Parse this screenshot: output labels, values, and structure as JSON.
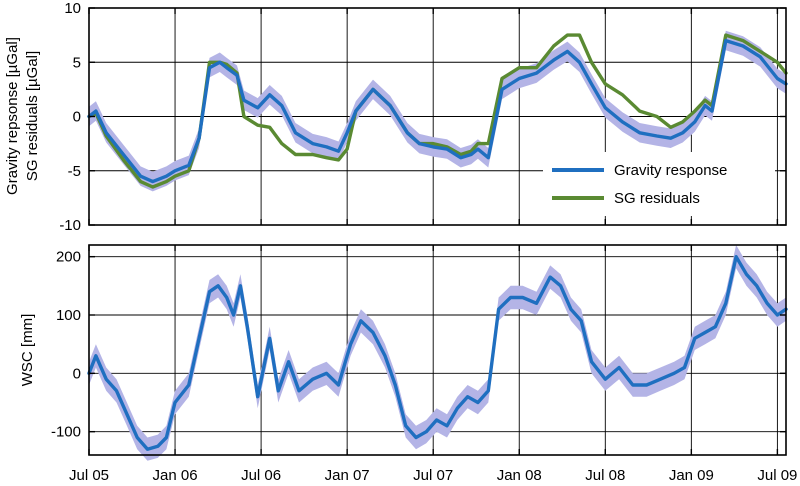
{
  "chart_data": [
    {
      "type": "line",
      "panel": "top",
      "ylabel_lines": [
        "Gravity repsonse [µGal]",
        "SG residuals [µGal]"
      ],
      "ylim": [
        -10,
        10
      ],
      "yticks": [
        10,
        5,
        0,
        -5,
        -10
      ],
      "xlim": [
        2005.5,
        2009.55
      ],
      "xticks": [
        2005.5,
        2006.0,
        2006.5,
        2007.0,
        2007.5,
        2008.0,
        2008.5,
        2009.0,
        2009.5
      ],
      "grid": true,
      "legend_placement": "lower-right",
      "colors": {
        "gravity": "#1f6fc0",
        "sg": "#5a8a32",
        "band": "#b4b4e6"
      },
      "band_halfwidth": 0.9,
      "series": [
        {
          "name": "Gravity response",
          "key": "gravity",
          "x": [
            2005.5,
            2005.54,
            2005.6,
            2005.7,
            2005.8,
            2005.87,
            2005.95,
            2006.0,
            2006.08,
            2006.14,
            2006.2,
            2006.26,
            2006.3,
            2006.36,
            2006.4,
            2006.48,
            2006.55,
            2006.62,
            2006.7,
            2006.8,
            2006.88,
            2006.95,
            2007.0,
            2007.05,
            2007.15,
            2007.25,
            2007.35,
            2007.42,
            2007.5,
            2007.58,
            2007.66,
            2007.72,
            2007.76,
            2007.82,
            2007.9,
            2008.0,
            2008.1,
            2008.2,
            2008.28,
            2008.35,
            2008.42,
            2008.5,
            2008.6,
            2008.7,
            2008.8,
            2008.88,
            2008.95,
            2009.02,
            2009.08,
            2009.12,
            2009.2,
            2009.3,
            2009.4,
            2009.5,
            2009.55
          ],
          "y": [
            0,
            0.5,
            -1.5,
            -3.5,
            -5.5,
            -6.0,
            -5.5,
            -5.0,
            -4.5,
            -2.0,
            4.5,
            5.0,
            4.5,
            3.8,
            1.5,
            0.8,
            2.0,
            1.0,
            -1.5,
            -2.5,
            -2.8,
            -3.2,
            -1.5,
            0.5,
            2.5,
            1.0,
            -1.5,
            -2.5,
            -2.8,
            -3.0,
            -3.8,
            -3.5,
            -3.0,
            -3.8,
            2.5,
            3.5,
            4.0,
            5.2,
            6.0,
            5.0,
            3.0,
            0.8,
            -0.5,
            -1.5,
            -1.8,
            -2.0,
            -1.5,
            -0.5,
            1.0,
            0.5,
            7.0,
            6.5,
            5.5,
            3.5,
            3.0
          ]
        },
        {
          "name": "SG residuals",
          "key": "sg",
          "x": [
            2005.5,
            2005.54,
            2005.6,
            2005.7,
            2005.8,
            2005.87,
            2005.95,
            2006.0,
            2006.08,
            2006.14,
            2006.2,
            2006.26,
            2006.3,
            2006.36,
            2006.4,
            2006.48,
            2006.55,
            2006.62,
            2006.7,
            2006.8,
            2006.88,
            2006.95,
            2007.0,
            2007.05,
            2007.15,
            2007.25,
            2007.35,
            2007.42,
            2007.5,
            2007.58,
            2007.66,
            2007.72,
            2007.76,
            2007.82,
            2007.9,
            2008.0,
            2008.1,
            2008.2,
            2008.28,
            2008.35,
            2008.42,
            2008.5,
            2008.6,
            2008.7,
            2008.8,
            2008.88,
            2008.95,
            2009.02,
            2009.08,
            2009.12,
            2009.2,
            2009.3,
            2009.4,
            2009.5,
            2009.55
          ],
          "y": [
            0,
            0.3,
            -1.8,
            -4.0,
            -6.0,
            -6.5,
            -6.0,
            -5.5,
            -5.0,
            -2.0,
            5.0,
            5.0,
            4.8,
            4.0,
            0.0,
            -0.8,
            -1.0,
            -2.5,
            -3.5,
            -3.5,
            -3.8,
            -4.0,
            -3.0,
            0.5,
            2.5,
            1.0,
            -1.5,
            -2.5,
            -2.5,
            -2.8,
            -3.5,
            -3.2,
            -2.5,
            -2.5,
            3.5,
            4.5,
            4.5,
            6.5,
            7.5,
            7.5,
            5.0,
            3.0,
            2.0,
            0.5,
            0.0,
            -1.0,
            -0.5,
            0.5,
            1.5,
            1.0,
            7.5,
            7.0,
            6.0,
            5.0,
            4.0
          ]
        }
      ]
    },
    {
      "type": "line",
      "panel": "bottom",
      "ylabel": "WSC [mm]",
      "ylim": [
        -140,
        220
      ],
      "yticks": [
        200,
        100,
        0,
        -100
      ],
      "xlim": [
        2005.5,
        2009.55
      ],
      "xticks": [
        2005.5,
        2006.0,
        2006.5,
        2007.0,
        2007.5,
        2008.0,
        2008.5,
        2009.0,
        2009.5
      ],
      "xtick_labels": [
        "Jul 05",
        "Jan 06",
        "Jul 06",
        "Jan 07",
        "Jul 07",
        "Jan 08",
        "Jul 08",
        "Jan 09",
        "Jul 09"
      ],
      "grid": true,
      "colors": {
        "wsc": "#1f6fc0",
        "band": "#b4b4e6"
      },
      "band_halfwidth": 20,
      "series": [
        {
          "key": "wsc",
          "x": [
            2005.5,
            2005.54,
            2005.6,
            2005.66,
            2005.72,
            2005.78,
            2005.84,
            2005.9,
            2005.95,
            2006.0,
            2006.08,
            2006.14,
            2006.2,
            2006.25,
            2006.3,
            2006.34,
            2006.38,
            2006.42,
            2006.48,
            2006.55,
            2006.6,
            2006.66,
            2006.72,
            2006.8,
            2006.88,
            2006.95,
            2007.02,
            2007.08,
            2007.15,
            2007.22,
            2007.28,
            2007.34,
            2007.4,
            2007.46,
            2007.52,
            2007.58,
            2007.64,
            2007.7,
            2007.76,
            2007.82,
            2007.88,
            2007.95,
            2008.02,
            2008.1,
            2008.18,
            2008.24,
            2008.3,
            2008.36,
            2008.42,
            2008.5,
            2008.58,
            2008.66,
            2008.74,
            2008.82,
            2008.9,
            2008.96,
            2009.02,
            2009.08,
            2009.14,
            2009.2,
            2009.26,
            2009.32,
            2009.38,
            2009.44,
            2009.5,
            2009.55
          ],
          "y": [
            0,
            30,
            -10,
            -30,
            -70,
            -110,
            -130,
            -125,
            -110,
            -50,
            -20,
            60,
            140,
            150,
            130,
            100,
            150,
            80,
            -40,
            60,
            -30,
            20,
            -30,
            -10,
            0,
            -20,
            50,
            90,
            70,
            30,
            -20,
            -90,
            -110,
            -100,
            -80,
            -90,
            -60,
            -40,
            -50,
            -30,
            110,
            130,
            130,
            120,
            165,
            150,
            110,
            90,
            20,
            -10,
            10,
            -20,
            -20,
            -10,
            0,
            10,
            60,
            70,
            80,
            120,
            200,
            170,
            150,
            120,
            100,
            110
          ]
        }
      ]
    }
  ]
}
